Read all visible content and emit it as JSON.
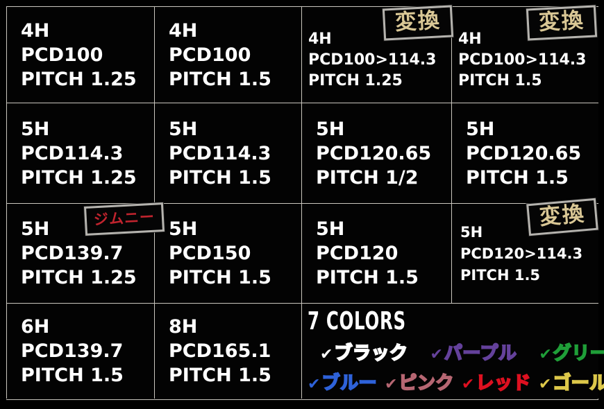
{
  "badges": {
    "conversion_label": "変換",
    "jimny_label": "ジムニー"
  },
  "accent_colors": {
    "badge_text": "#d9c795",
    "badge_border": "#b5b3ae",
    "jimny_text": "#c1242e",
    "grid_line": "#cac7bf",
    "cell_text": "#ffffff",
    "background": "#000000"
  },
  "grid": {
    "cells": [
      {
        "hole": "4H",
        "pcd": "PCD100",
        "pitch": "PITCH 1.25"
      },
      {
        "hole": "4H",
        "pcd": "PCD100",
        "pitch": "PITCH 1.5"
      },
      {
        "hole": "4H",
        "pcd": "PCD100>114.3",
        "pitch": "PITCH 1.25",
        "badge": "変換"
      },
      {
        "hole": "4H",
        "pcd": "PCD100>114.3",
        "pitch": "PITCH 1.5",
        "badge": "変換"
      },
      {
        "hole": "5H",
        "pcd": "PCD114.3",
        "pitch": "PITCH 1.25"
      },
      {
        "hole": "5H",
        "pcd": "PCD114.3",
        "pitch": "PITCH 1.5"
      },
      {
        "hole": "5H",
        "pcd": "PCD120.65",
        "pitch": "PITCH 1/2"
      },
      {
        "hole": "5H",
        "pcd": "PCD120.65",
        "pitch": "PITCH 1.5"
      },
      {
        "hole": "5H",
        "pcd": "PCD139.7",
        "pitch": "PITCH 1.25",
        "badge": "ジムニー"
      },
      {
        "hole": "5H",
        "pcd": "PCD150",
        "pitch": "PITCH 1.5"
      },
      {
        "hole": "5H",
        "pcd": "PCD120",
        "pitch": "PITCH 1.5"
      },
      {
        "hole": "5H",
        "pcd": "PCD120>114.3",
        "pitch": "PITCH 1.5",
        "badge": "変換"
      },
      {
        "hole": "6H",
        "pcd": "PCD139.7",
        "pitch": "PITCH 1.5"
      },
      {
        "hole": "8H",
        "pcd": "PCD165.1",
        "pitch": "PITCH 1.5"
      }
    ]
  },
  "colors_section": {
    "title": "7 COLORS",
    "check_glyph": "✔",
    "rows": [
      [
        {
          "name": "ブラック",
          "hex": "#ffffff"
        },
        {
          "name": "パープル",
          "hex": "#64419b"
        },
        {
          "name": "グリーン",
          "hex": "#1f9e38"
        }
      ],
      [
        {
          "name": "ブルー",
          "hex": "#2e62d9"
        },
        {
          "name": "ピンク",
          "hex": "#b66672"
        },
        {
          "name": "レッド",
          "hex": "#dd1020"
        },
        {
          "name": "ゴールド",
          "hex": "#ddc84a"
        }
      ]
    ]
  }
}
